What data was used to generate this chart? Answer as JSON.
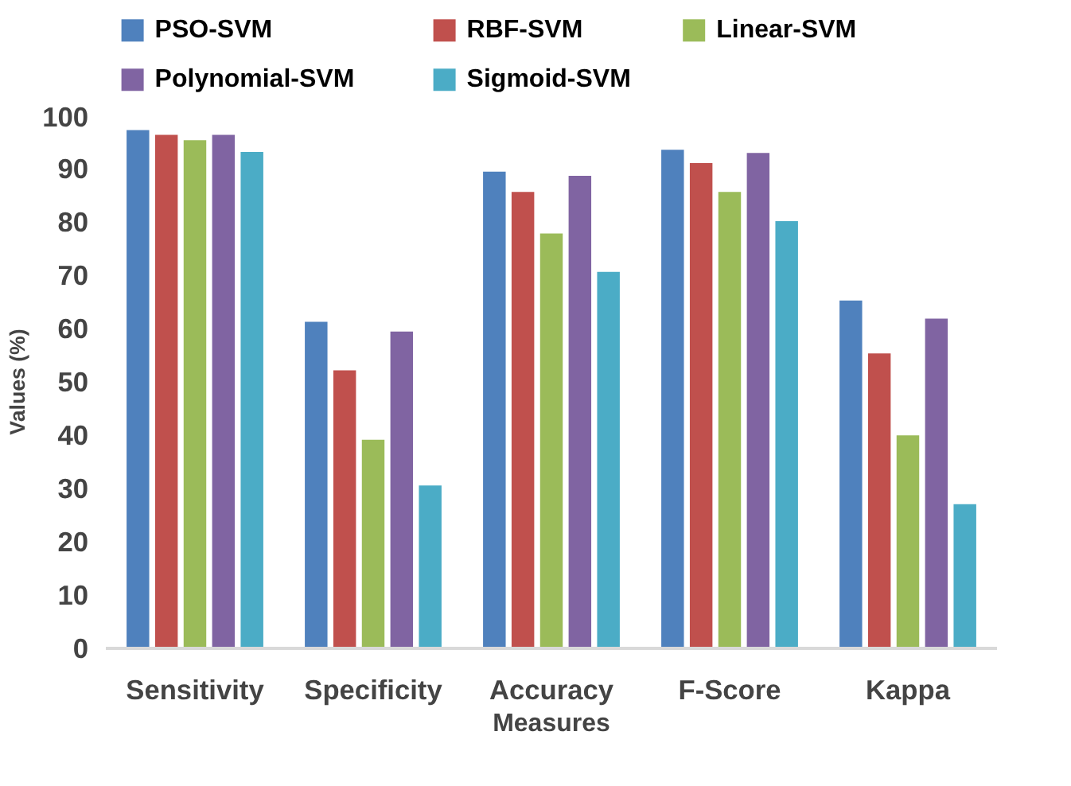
{
  "chart_data": {
    "type": "bar",
    "xlabel": "Measures",
    "ylabel": "Values (%)",
    "categories": [
      "Sensitivity",
      "Specificity",
      "Accuracy",
      "F-Score",
      "Kappa"
    ],
    "series": [
      {
        "name": "PSO-SVM",
        "color": "#4f81bd",
        "values": [
          97.4,
          61.4,
          89.6,
          93.7,
          65.4
        ]
      },
      {
        "name": "RBF-SVM",
        "color": "#c0504d",
        "values": [
          96.5,
          52.3,
          85.8,
          91.2,
          55.5
        ]
      },
      {
        "name": "Linear-SVM",
        "color": "#9bbb59",
        "values": [
          95.5,
          39.3,
          78,
          85.8,
          40.1
        ]
      },
      {
        "name": "Polynomial-SVM",
        "color": "#8064a2",
        "values": [
          96.5,
          59.6,
          88.8,
          93.1,
          62
        ]
      },
      {
        "name": "Sigmoid-SVM",
        "color": "#4bacc6",
        "values": [
          93.3,
          30.7,
          70.8,
          80.3,
          27.2
        ]
      }
    ],
    "ylim": [
      0,
      100
    ],
    "yticks": [
      0,
      10,
      20,
      30,
      40,
      50,
      60,
      70,
      80,
      90,
      100
    ],
    "grid": false,
    "legend": "top"
  }
}
